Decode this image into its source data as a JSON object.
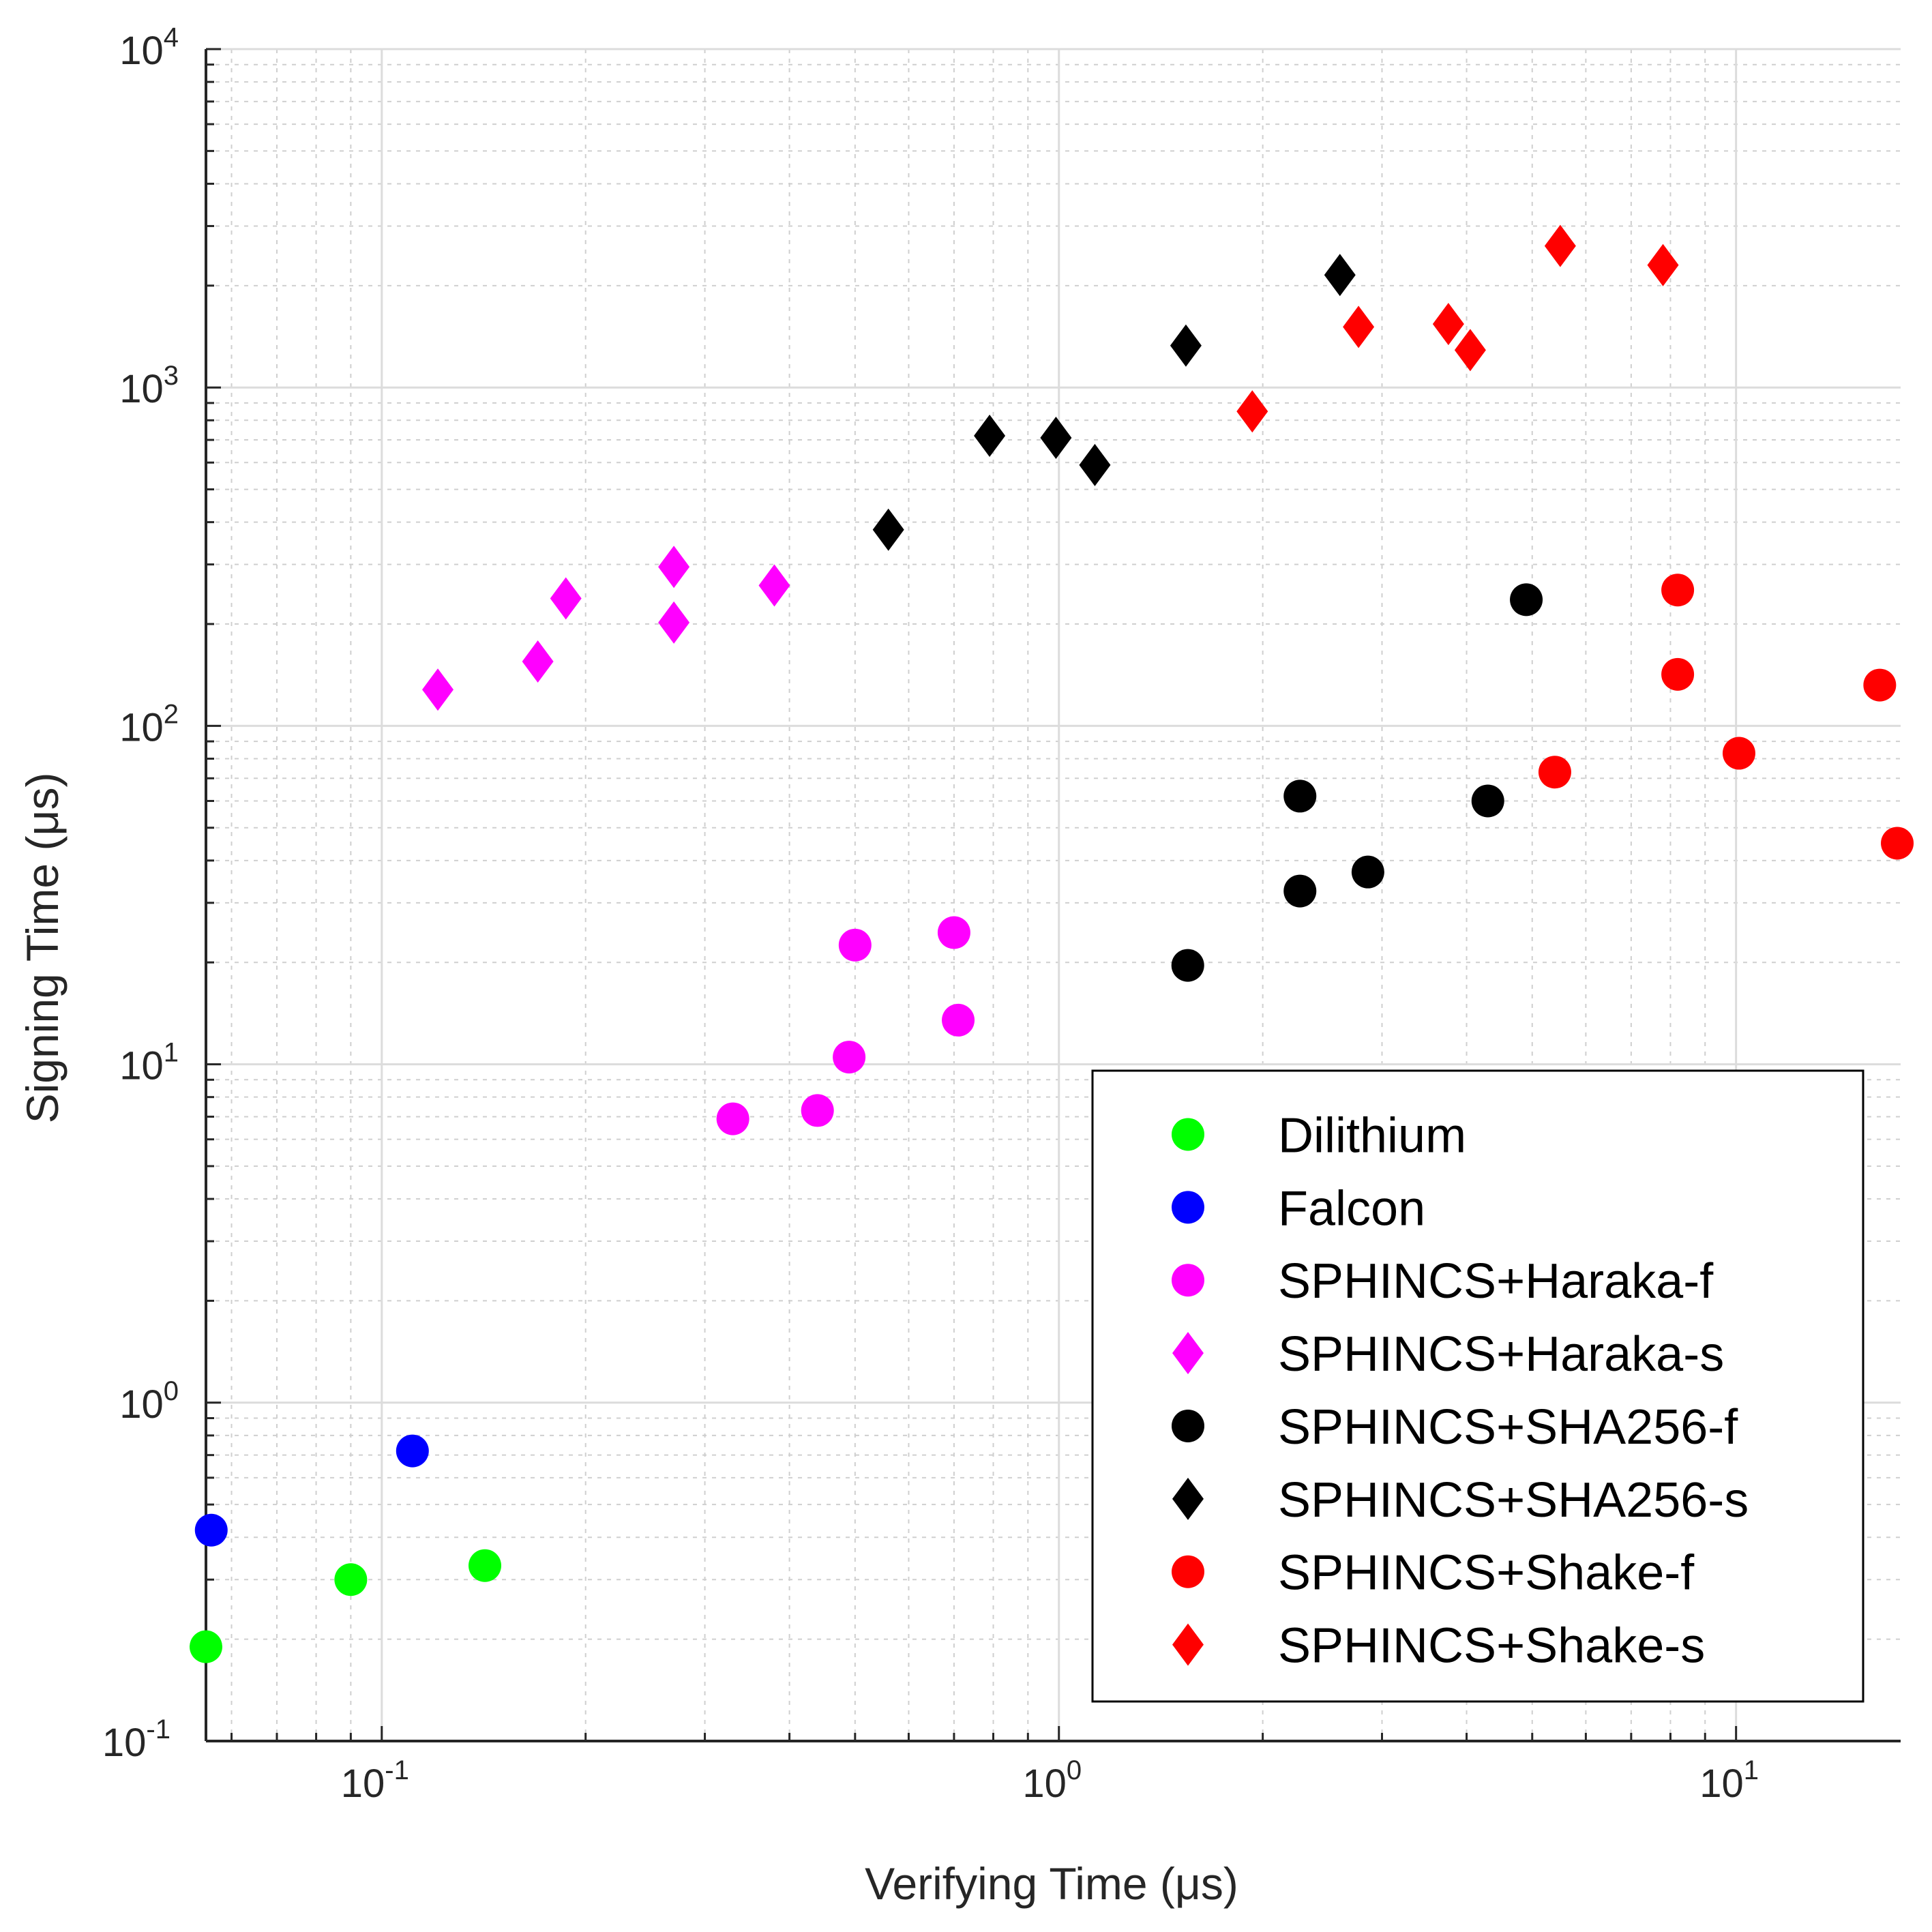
{
  "chart_data": {
    "type": "scatter",
    "xscale": "log",
    "yscale": "log",
    "xlim": [
      0.055,
      17.5
    ],
    "ylim": [
      0.1,
      10000
    ],
    "grid": true,
    "minor_grid": true,
    "xlabel": "Verifying Time (μs)",
    "ylabel": "Signing Time (μs)",
    "x_ticks": [
      {
        "base": "10",
        "exp": "-1",
        "value": 0.1
      },
      {
        "base": "10",
        "exp": "0",
        "value": 1
      },
      {
        "base": "10",
        "exp": "1",
        "value": 10
      }
    ],
    "y_ticks": [
      {
        "base": "10",
        "exp": "-1",
        "value": 0.1
      },
      {
        "base": "10",
        "exp": "0",
        "value": 1
      },
      {
        "base": "10",
        "exp": "1",
        "value": 10
      },
      {
        "base": "10",
        "exp": "2",
        "value": 100
      },
      {
        "base": "10",
        "exp": "3",
        "value": 1000
      },
      {
        "base": "10",
        "exp": "4",
        "value": 10000
      }
    ],
    "legend_position": "bottom-right",
    "series": [
      {
        "name": "Dilithium",
        "color": "#00ff00",
        "marker": "circle",
        "points": [
          [
            0.055,
            0.19
          ],
          [
            0.09,
            0.3
          ],
          [
            0.142,
            0.33
          ]
        ]
      },
      {
        "name": "Falcon",
        "color": "#0000ff",
        "marker": "circle",
        "points": [
          [
            0.056,
            0.42
          ],
          [
            0.111,
            0.72
          ]
        ]
      },
      {
        "name": "SPHINCS+Haraka-f",
        "color": "#ff00ff",
        "marker": "circle",
        "points": [
          [
            0.33,
            6.9
          ],
          [
            0.44,
            7.3
          ],
          [
            0.49,
            10.5
          ],
          [
            0.5,
            22.5
          ],
          [
            0.7,
            24.5
          ],
          [
            0.71,
            13.5
          ]
        ]
      },
      {
        "name": "SPHINCS+Haraka-s",
        "color": "#ff00ff",
        "marker": "diamond",
        "points": [
          [
            0.121,
            128
          ],
          [
            0.17,
            155
          ],
          [
            0.187,
            238
          ],
          [
            0.27,
            295
          ],
          [
            0.27,
            202
          ],
          [
            0.38,
            260
          ]
        ]
      },
      {
        "name": "SPHINCS+SHA256-f",
        "color": "#000000",
        "marker": "circle",
        "points": [
          [
            1.55,
            19.6
          ],
          [
            2.27,
            62
          ],
          [
            2.27,
            32.5
          ],
          [
            2.86,
            37
          ],
          [
            4.3,
            60
          ],
          [
            4.9,
            236
          ]
        ]
      },
      {
        "name": "SPHINCS+SHA256-s",
        "color": "#000000",
        "marker": "diamond",
        "points": [
          [
            0.56,
            380
          ],
          [
            0.79,
            720
          ],
          [
            0.99,
            710
          ],
          [
            1.13,
            590
          ],
          [
            1.54,
            1330
          ],
          [
            2.6,
            2150
          ]
        ]
      },
      {
        "name": "SPHINCS+Shake-f",
        "color": "#ff0000",
        "marker": "circle",
        "points": [
          [
            5.4,
            73
          ],
          [
            8.2,
            252
          ],
          [
            8.2,
            142
          ],
          [
            10.1,
            83
          ],
          [
            16.3,
            132
          ],
          [
            17.3,
            45
          ]
        ]
      },
      {
        "name": "SPHINCS+Shake-s",
        "color": "#ff0000",
        "marker": "diamond",
        "points": [
          [
            1.93,
            850
          ],
          [
            2.77,
            1510
          ],
          [
            3.76,
            1540
          ],
          [
            4.05,
            1290
          ],
          [
            5.5,
            2620
          ],
          [
            7.8,
            2300
          ]
        ]
      }
    ]
  }
}
